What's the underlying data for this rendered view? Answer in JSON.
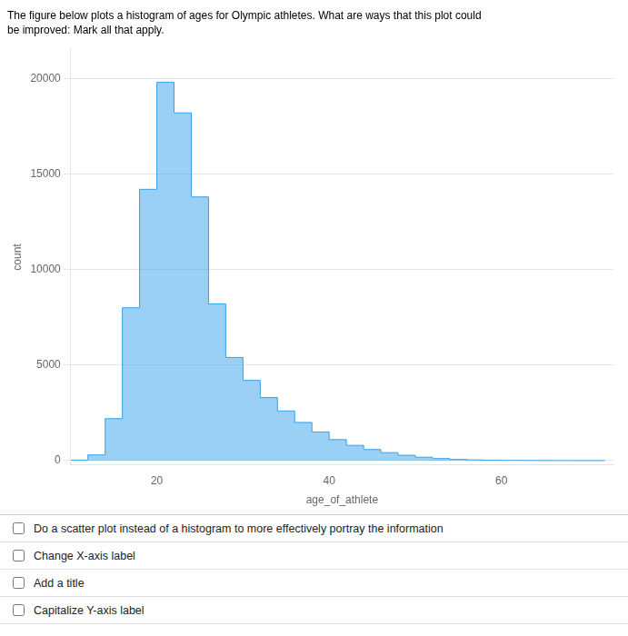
{
  "chart_data": {
    "type": "histogram",
    "title": "The figure below plots a histogram of ages for Olympic athletes. What are ways that this plot could",
    "subtitle": "be improved: Mark all that apply.",
    "xlabel": "age_of_athlete",
    "ylabel": "count",
    "bins": [
      10,
      12,
      14,
      16,
      18,
      20,
      22,
      24,
      26,
      28,
      30,
      32,
      34,
      36,
      38,
      40,
      42,
      44,
      46,
      48,
      50,
      52,
      54,
      56,
      58,
      60,
      62,
      64,
      66,
      68,
      70,
      72
    ],
    "values": [
      30,
      300,
      2200,
      8000,
      14200,
      19800,
      18200,
      13800,
      8200,
      5400,
      4200,
      3300,
      2600,
      2000,
      1500,
      1100,
      800,
      580,
      420,
      280,
      180,
      110,
      65,
      38,
      22,
      14,
      10,
      6,
      4,
      2,
      1
    ],
    "xlim": [
      10,
      73
    ],
    "ylim": [
      -200,
      21500
    ],
    "xticks": [
      20,
      40,
      60
    ],
    "yticks": [
      0,
      5000,
      10000,
      15000,
      20000
    ],
    "grid": "y",
    "annotations": [
      "Do a scatter plot instead of a histogram to more effectively portray the information",
      "Change X-axis label",
      "Add a title",
      "Capitalize Y-axis label"
    ]
  }
}
